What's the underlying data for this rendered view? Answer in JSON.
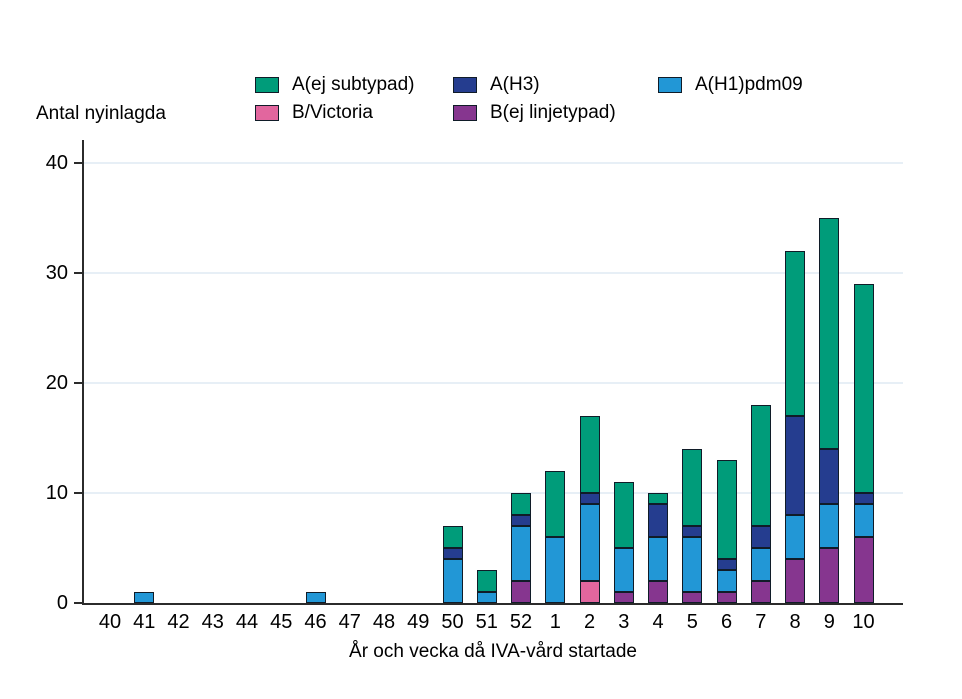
{
  "chart_data": {
    "type": "bar",
    "stacked": true,
    "title": "",
    "ylabel": "Antal nyinlagda",
    "xlabel": "År och vecka då IVA-vård startade",
    "ylim": [
      0,
      42
    ],
    "yticks": [
      0,
      10,
      20,
      30,
      40
    ],
    "grid": true,
    "legend_position": "top",
    "categories": [
      "40",
      "41",
      "42",
      "43",
      "44",
      "45",
      "46",
      "47",
      "48",
      "49",
      "50",
      "51",
      "52",
      "1",
      "2",
      "3",
      "4",
      "5",
      "6",
      "7",
      "8",
      "9",
      "10"
    ],
    "series": [
      {
        "name": "B/Victoria",
        "color": "#e2669e",
        "values": [
          0,
          0,
          0,
          0,
          0,
          0,
          0,
          0,
          0,
          0,
          0,
          0,
          0,
          0,
          2,
          0,
          0,
          0,
          0,
          0,
          0,
          0,
          0
        ]
      },
      {
        "name": "B(ej linjetypad)",
        "color": "#86368f",
        "values": [
          0,
          0,
          0,
          0,
          0,
          0,
          0,
          0,
          0,
          0,
          0,
          0,
          2,
          0,
          0,
          1,
          2,
          1,
          1,
          2,
          4,
          5,
          6
        ]
      },
      {
        "name": "A(H1)pdm09",
        "color": "#2297d6",
        "values": [
          0,
          1,
          0,
          0,
          0,
          0,
          1,
          0,
          0,
          0,
          4,
          1,
          5,
          6,
          7,
          4,
          4,
          5,
          2,
          3,
          4,
          4,
          3
        ]
      },
      {
        "name": "A(H3)",
        "color": "#253d8f",
        "values": [
          0,
          0,
          0,
          0,
          0,
          0,
          0,
          0,
          0,
          0,
          1,
          0,
          1,
          0,
          1,
          0,
          3,
          1,
          1,
          2,
          9,
          5,
          1
        ]
      },
      {
        "name": "A(ej subtypad)",
        "color": "#009c7a",
        "values": [
          0,
          0,
          0,
          0,
          0,
          0,
          0,
          0,
          0,
          0,
          2,
          2,
          2,
          6,
          7,
          6,
          1,
          7,
          9,
          11,
          15,
          21,
          19
        ]
      }
    ],
    "bar_totals": [
      0,
      1,
      0,
      0,
      0,
      0,
      1,
      0,
      0,
      0,
      7,
      3,
      10,
      12,
      17,
      11,
      10,
      14,
      13,
      18,
      32,
      35,
      29
    ],
    "legend_rows": [
      [
        "A(ej subtypad)",
        "A(H3)",
        "A(H1)pdm09"
      ],
      [
        "B/Victoria",
        "B(ej linjetypad)"
      ]
    ]
  }
}
